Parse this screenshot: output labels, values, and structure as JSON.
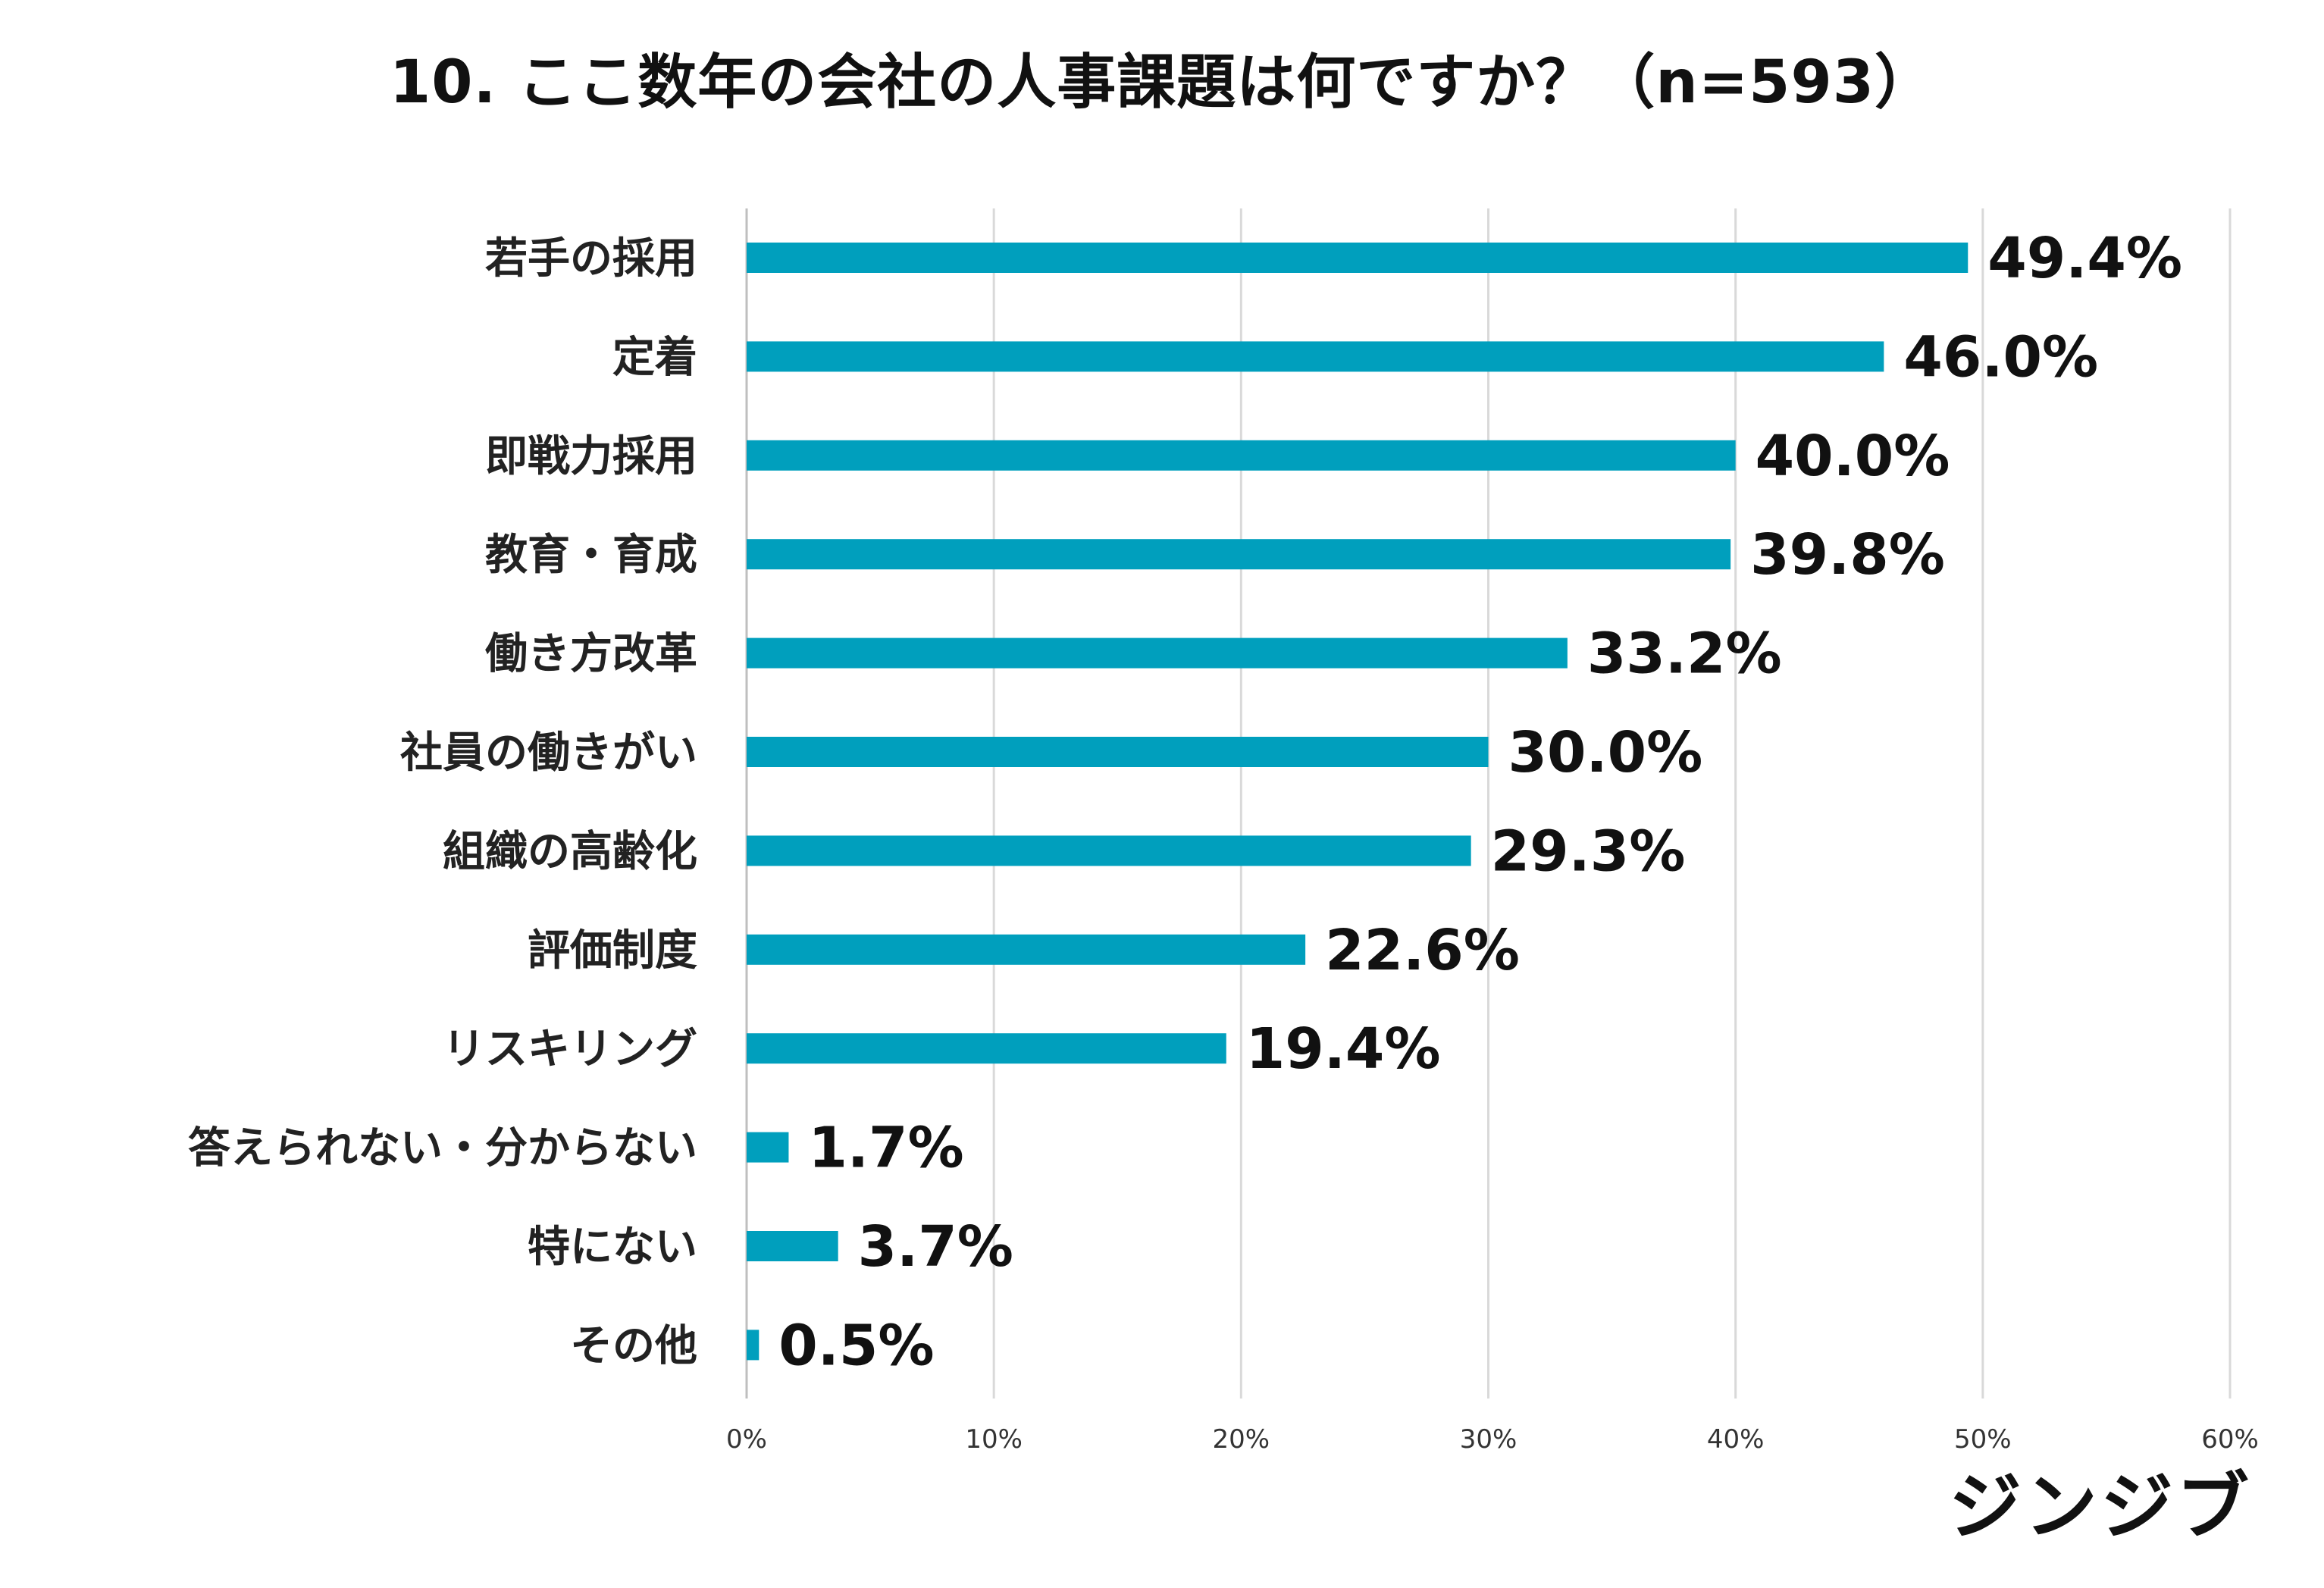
{
  "title": "10. ここ数年の会社の人事課題は何ですか？（n=593）",
  "brand": "ジンジブ",
  "colors": {
    "bar": "#009FBD",
    "grid": "#d9d9d9",
    "axis": "#bfbfbf"
  },
  "chart_data": {
    "type": "bar",
    "orientation": "horizontal",
    "title": "10. ここ数年の会社の人事課題は何ですか？（n=593）",
    "categories": [
      "若手の採用",
      "定着",
      "即戦力採用",
      "教育・育成",
      "働き方改革",
      "社員の働きがい",
      "組織の高齢化",
      "評価制度",
      "リスキリング",
      "答えられない・分からない",
      "特にない",
      "その他"
    ],
    "values": [
      49.4,
      46.0,
      40.0,
      39.8,
      33.2,
      30.0,
      29.3,
      22.6,
      19.4,
      1.7,
      3.7,
      0.5
    ],
    "value_labels": [
      "49.4%",
      "46.0%",
      "40.0%",
      "39.8%",
      "33.2%",
      "30.0%",
      "29.3%",
      "22.6%",
      "19.4%",
      "1.7%",
      "3.7%",
      "0.5%"
    ],
    "xlim": [
      0,
      60
    ],
    "xticks": [
      0,
      10,
      20,
      30,
      40,
      50,
      60
    ],
    "xtick_labels": [
      "0%",
      "10%",
      "20%",
      "30%",
      "40%",
      "50%",
      "60%"
    ],
    "xlabel": "",
    "ylabel": "",
    "grid": true,
    "legend": "none"
  }
}
